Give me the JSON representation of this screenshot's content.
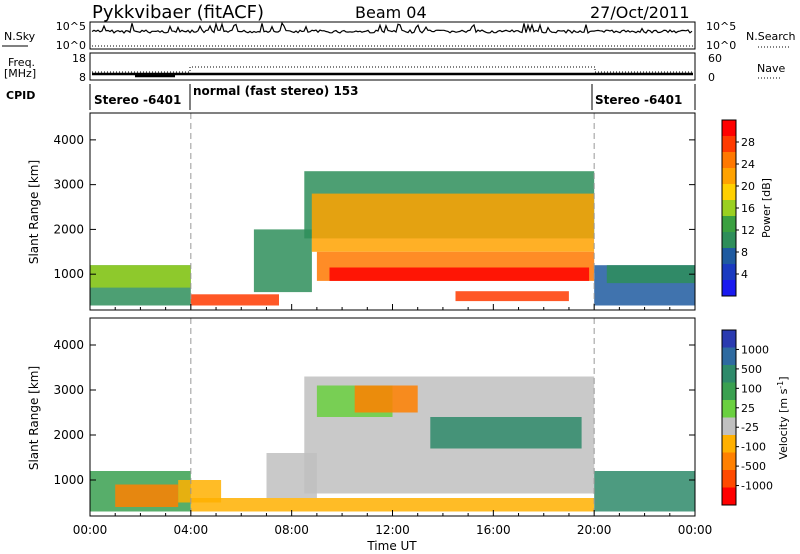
{
  "header": {
    "station": "Pykkvibaer (fitACF)",
    "beam": "Beam 04",
    "date": "27/Oct/2011"
  },
  "panels": {
    "nsky": {
      "left_label": "N.Sky",
      "left_ticks": [
        "10^5",
        "10^0"
      ],
      "right_ticks": [
        "10^5",
        "10^0"
      ],
      "right_label": "N.Search"
    },
    "freq": {
      "left_label_top": "Freq.",
      "left_label_bottom": "[MHz]",
      "left_ticks": [
        "18",
        "8"
      ],
      "right_ticks": [
        "60",
        "0"
      ],
      "right_label": "Nave"
    },
    "cpid": {
      "label": "CPID",
      "segments": [
        "Stereo -6401",
        "normal (fast stereo) 153",
        "Stereo -6401"
      ]
    }
  },
  "colorbars": {
    "power": {
      "label": "Power [dB]",
      "ticks": [
        "28",
        "24",
        "20",
        "16",
        "12",
        "8",
        "4"
      ],
      "colors": [
        "#ff0000",
        "#ff3a00",
        "#ff7800",
        "#ffa200",
        "#ffd000",
        "#9ad020",
        "#3aa040",
        "#2e8e5a",
        "#1e5aa0",
        "#1a3ac0",
        "#1a1af0"
      ]
    },
    "velocity": {
      "label": "Velocity [m s",
      "label_sup": "-1",
      "label_end": "]",
      "ticks": [
        "1000",
        "500",
        "100",
        "25",
        "-25",
        "-100",
        "-500",
        "-1000"
      ],
      "colors": [
        "#2a3ab0",
        "#2e6aa0",
        "#2e8a6a",
        "#3aa050",
        "#6ad040",
        "#c0c0c0",
        "#ffb000",
        "#ff8000",
        "#ff4a00",
        "#ff0000"
      ]
    }
  },
  "chart_data": [
    {
      "type": "heatmap",
      "name": "power",
      "ylabel": "Slant Range [km]",
      "ylim": [
        200,
        4600
      ],
      "yticks": [
        1000,
        2000,
        3000,
        4000
      ],
      "xlim": [
        0,
        24
      ],
      "xticks": [
        "00:00",
        "04:00",
        "08:00",
        "12:00",
        "16:00",
        "20:00",
        "00:00"
      ],
      "mode_boundaries_hours": [
        4,
        20
      ],
      "regions": [
        {
          "t0": 0.0,
          "t1": 4.0,
          "r0": 300,
          "r1": 1200,
          "value_db": 12,
          "color": "#2e8e5a"
        },
        {
          "t0": 0.0,
          "t1": 4.0,
          "r0": 700,
          "r1": 1200,
          "value_db": 16,
          "color": "#9ad020"
        },
        {
          "t0": 4.0,
          "t1": 7.5,
          "r0": 300,
          "r1": 550,
          "value_db": 24,
          "color": "#ff3a00"
        },
        {
          "t0": 6.5,
          "t1": 8.8,
          "r0": 600,
          "r1": 2000,
          "value_db": 12,
          "color": "#2e8e5a"
        },
        {
          "t0": 8.5,
          "t1": 20.0,
          "r0": 1800,
          "r1": 3300,
          "value_db": 12,
          "color": "#2e8e5a"
        },
        {
          "t0": 8.8,
          "t1": 20.0,
          "r0": 1500,
          "r1": 2800,
          "value_db": 16,
          "color": "#ffa200"
        },
        {
          "t0": 9.0,
          "t1": 20.0,
          "r0": 850,
          "r1": 1500,
          "value_db": 24,
          "color": "#ff7800"
        },
        {
          "t0": 9.5,
          "t1": 19.8,
          "r0": 850,
          "r1": 1150,
          "value_db": 28,
          "color": "#ff0000"
        },
        {
          "t0": 14.5,
          "t1": 19.0,
          "r0": 400,
          "r1": 620,
          "value_db": 26,
          "color": "#ff3a00"
        },
        {
          "t0": 20.0,
          "t1": 24.0,
          "r0": 300,
          "r1": 1200,
          "value_db": 8,
          "color": "#1e5aa0"
        },
        {
          "t0": 20.5,
          "t1": 24.0,
          "r0": 800,
          "r1": 1200,
          "value_db": 12,
          "color": "#2e8e5a"
        }
      ]
    },
    {
      "type": "heatmap",
      "name": "velocity",
      "ylabel": "Slant Range [km]",
      "ylim": [
        200,
        4600
      ],
      "yticks": [
        1000,
        2000,
        3000,
        4000
      ],
      "xlim": [
        0,
        24
      ],
      "xticks": [
        "00:00",
        "04:00",
        "08:00",
        "12:00",
        "16:00",
        "20:00",
        "00:00"
      ],
      "xlabel": "Time UT",
      "mode_boundaries_hours": [
        4,
        20
      ],
      "regions": [
        {
          "t0": 0.0,
          "t1": 4.0,
          "r0": 300,
          "r1": 1200,
          "value_ms": 100,
          "color": "#3aa050"
        },
        {
          "t0": 1.0,
          "t1": 3.5,
          "r0": 400,
          "r1": 900,
          "value_ms": -100,
          "color": "#ff8000"
        },
        {
          "t0": 3.5,
          "t1": 5.2,
          "r0": 500,
          "r1": 1000,
          "value_ms": -100,
          "color": "#ffb000"
        },
        {
          "t0": 4.0,
          "t1": 20.0,
          "r0": 300,
          "r1": 600,
          "value_ms": -25,
          "color": "#ffb000"
        },
        {
          "t0": 7.0,
          "t1": 9.0,
          "r0": 600,
          "r1": 1600,
          "value_ms": 0,
          "color": "#c0c0c0"
        },
        {
          "t0": 8.5,
          "t1": 20.0,
          "r0": 700,
          "r1": 3300,
          "value_ms": 0,
          "color": "#c0c0c0"
        },
        {
          "t0": 9.0,
          "t1": 12.0,
          "r0": 2400,
          "r1": 3100,
          "value_ms": 100,
          "color": "#6ad040"
        },
        {
          "t0": 10.5,
          "t1": 13.0,
          "r0": 2500,
          "r1": 3100,
          "value_ms": -100,
          "color": "#ff8000"
        },
        {
          "t0": 13.5,
          "t1": 19.5,
          "r0": 1700,
          "r1": 2400,
          "value_ms": 500,
          "color": "#2e8a6a"
        },
        {
          "t0": 20.0,
          "t1": 24.0,
          "r0": 300,
          "r1": 1200,
          "value_ms": 100,
          "color": "#2e8a6a"
        }
      ]
    }
  ]
}
